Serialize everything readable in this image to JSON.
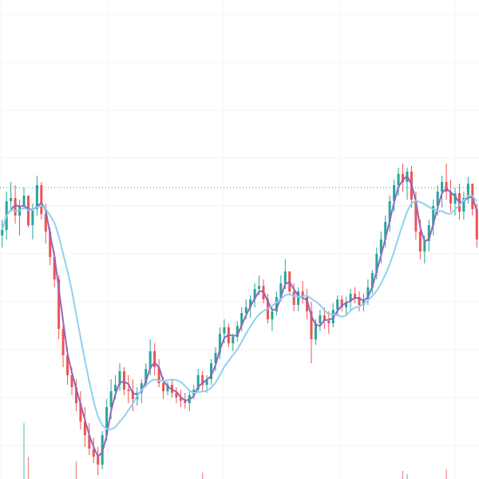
{
  "colors": {
    "background": "#ffffff",
    "grid": "#f3f3f3",
    "candle_up": "#26a69a",
    "candle_down": "#ef5350",
    "ma_fast": "#9467bd",
    "ma_slow": "#8fd1f0",
    "price_line": "#26a69a"
  },
  "chart_data": {
    "type": "candlestick",
    "grid": true,
    "ylim": [
      0,
      600
    ],
    "price_line_value": 365,
    "series": [
      {
        "name": "",
        "kind": "moving-average-fast",
        "color_key": "ma_fast"
      },
      {
        "name": "",
        "kind": "moving-average-slow",
        "color_key": "ma_slow"
      }
    ],
    "ohlc": [
      [
        305,
        325,
        290,
        312
      ],
      [
        312,
        360,
        300,
        348
      ],
      [
        348,
        372,
        335,
        352
      ],
      [
        352,
        368,
        320,
        330
      ],
      [
        330,
        350,
        305,
        342
      ],
      [
        342,
        365,
        338,
        355
      ],
      [
        355,
        352,
        315,
        318
      ],
      [
        318,
        345,
        300,
        338
      ],
      [
        338,
        380,
        330,
        368
      ],
      [
        368,
        372,
        325,
        332
      ],
      [
        332,
        345,
        295,
        310
      ],
      [
        310,
        315,
        268,
        278
      ],
      [
        278,
        285,
        240,
        250
      ],
      [
        250,
        255,
        175,
        188
      ],
      [
        188,
        200,
        140,
        155
      ],
      [
        155,
        165,
        118,
        130
      ],
      [
        130,
        140,
        105,
        115
      ],
      [
        115,
        125,
        85,
        95
      ],
      [
        95,
        110,
        62,
        72
      ],
      [
        72,
        90,
        40,
        55
      ],
      [
        55,
        70,
        30,
        38
      ],
      [
        38,
        52,
        20,
        28
      ],
      [
        28,
        40,
        5,
        18
      ],
      [
        18,
        60,
        12,
        55
      ],
      [
        55,
        100,
        48,
        90
      ],
      [
        90,
        125,
        75,
        110
      ],
      [
        110,
        130,
        100,
        118
      ],
      [
        118,
        145,
        110,
        135
      ],
      [
        135,
        140,
        105,
        112
      ],
      [
        112,
        130,
        95,
        110
      ],
      [
        110,
        125,
        85,
        100
      ],
      [
        100,
        115,
        92,
        108
      ],
      [
        108,
        125,
        95,
        120
      ],
      [
        120,
        145,
        115,
        138
      ],
      [
        138,
        175,
        130,
        160
      ],
      [
        160,
        170,
        130,
        140
      ],
      [
        140,
        150,
        115,
        120
      ],
      [
        120,
        128,
        100,
        110
      ],
      [
        110,
        122,
        105,
        118
      ],
      [
        118,
        125,
        102,
        108
      ],
      [
        108,
        115,
        95,
        102
      ],
      [
        102,
        112,
        90,
        98
      ],
      [
        98,
        108,
        88,
        95
      ],
      [
        95,
        110,
        85,
        105
      ],
      [
        105,
        118,
        100,
        112
      ],
      [
        112,
        138,
        108,
        130
      ],
      [
        130,
        135,
        110,
        118
      ],
      [
        118,
        130,
        108,
        125
      ],
      [
        125,
        150,
        118,
        145
      ],
      [
        145,
        165,
        135,
        158
      ],
      [
        158,
        190,
        150,
        182
      ],
      [
        182,
        200,
        170,
        190
      ],
      [
        190,
        195,
        165,
        170
      ],
      [
        170,
        182,
        160,
        178
      ],
      [
        178,
        198,
        172,
        192
      ],
      [
        192,
        215,
        185,
        208
      ],
      [
        208,
        225,
        200,
        215
      ],
      [
        215,
        230,
        202,
        225
      ],
      [
        225,
        245,
        215,
        238
      ],
      [
        238,
        255,
        230,
        242
      ],
      [
        242,
        250,
        220,
        225
      ],
      [
        225,
        232,
        195,
        200
      ],
      [
        200,
        215,
        185,
        210
      ],
      [
        210,
        235,
        205,
        228
      ],
      [
        228,
        255,
        222,
        245
      ],
      [
        245,
        275,
        238,
        260
      ],
      [
        260,
        258,
        230,
        235
      ],
      [
        235,
        245,
        210,
        218
      ],
      [
        218,
        240,
        210,
        235
      ],
      [
        235,
        248,
        220,
        228
      ],
      [
        228,
        238,
        200,
        210
      ],
      [
        210,
        222,
        145,
        175
      ],
      [
        175,
        200,
        168,
        195
      ],
      [
        195,
        212,
        185,
        205
      ],
      [
        205,
        215,
        188,
        198
      ],
      [
        198,
        210,
        182,
        195
      ],
      [
        195,
        220,
        190,
        212
      ],
      [
        212,
        230,
        205,
        225
      ],
      [
        225,
        230,
        210,
        215
      ],
      [
        215,
        228,
        205,
        222
      ],
      [
        222,
        238,
        212,
        232
      ],
      [
        232,
        240,
        220,
        228
      ],
      [
        228,
        235,
        210,
        218
      ],
      [
        218,
        232,
        210,
        225
      ],
      [
        225,
        250,
        218,
        240
      ],
      [
        240,
        262,
        232,
        258
      ],
      [
        258,
        290,
        250,
        282
      ],
      [
        282,
        310,
        270,
        300
      ],
      [
        300,
        330,
        290,
        322
      ],
      [
        322,
        355,
        310,
        348
      ],
      [
        348,
        375,
        335,
        368
      ],
      [
        368,
        390,
        355,
        382
      ],
      [
        382,
        395,
        360,
        372
      ],
      [
        372,
        390,
        350,
        385
      ],
      [
        385,
        392,
        340,
        350
      ],
      [
        350,
        360,
        300,
        310
      ],
      [
        310,
        325,
        275,
        285
      ],
      [
        285,
        305,
        270,
        298
      ],
      [
        298,
        325,
        285,
        318
      ],
      [
        318,
        350,
        305,
        342
      ],
      [
        342,
        368,
        330,
        360
      ],
      [
        360,
        380,
        340,
        372
      ],
      [
        372,
        395,
        350,
        360
      ],
      [
        360,
        375,
        335,
        345
      ],
      [
        345,
        365,
        330,
        358
      ],
      [
        358,
        370,
        325,
        335
      ],
      [
        335,
        360,
        325,
        352
      ],
      [
        352,
        378,
        345,
        370
      ],
      [
        370,
        365,
        330,
        338
      ],
      [
        338,
        345,
        290,
        300
      ]
    ]
  }
}
